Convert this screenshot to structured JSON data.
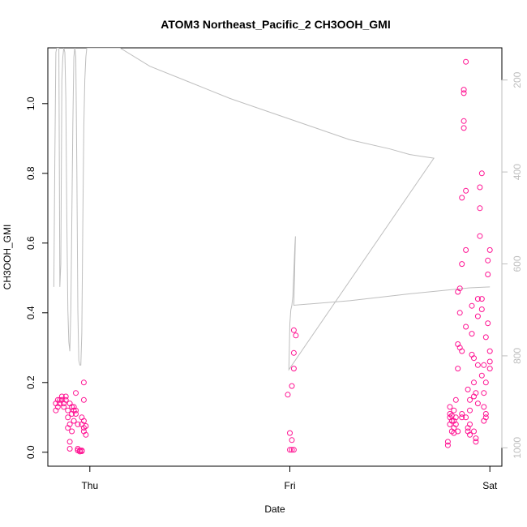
{
  "chart_data": {
    "type": "scatter",
    "title": "ATOM3 Northeast_Pacific_2 CH3OOH_GMI",
    "xlabel": "Date",
    "ylabel": "CH3OOH_GMI",
    "x_ticks": [
      {
        "label": "Thu",
        "pos": 0.0
      },
      {
        "label": "Fri",
        "pos": 1.0
      },
      {
        "label": "Sat",
        "pos": 2.0
      }
    ],
    "y_ticks": [
      "0.0",
      "0.2",
      "0.4",
      "0.6",
      "0.8",
      "1.0"
    ],
    "ylim": [
      -0.04,
      1.16
    ],
    "xlim": [
      -0.21,
      2.06
    ],
    "right_axis": {
      "ticks": [
        "200",
        "400",
        "600",
        "800",
        "1000"
      ],
      "tick_values": [
        200,
        400,
        600,
        800,
        1000
      ],
      "ylim_reversed": [
        1040,
        130
      ],
      "color": "#bebebe"
    },
    "colors": {
      "points": "#ff1493",
      "line": "#bebebe"
    },
    "series": [
      {
        "values": [
          [
            -0.17,
            0.12
          ],
          [
            -0.17,
            0.14
          ],
          [
            -0.16,
            0.15
          ],
          [
            -0.16,
            0.13
          ],
          [
            -0.15,
            0.15
          ],
          [
            -0.15,
            0.14
          ],
          [
            -0.14,
            0.16
          ],
          [
            -0.14,
            0.15
          ],
          [
            -0.13,
            0.13
          ],
          [
            -0.13,
            0.14
          ],
          [
            -0.12,
            0.16
          ],
          [
            -0.12,
            0.15
          ],
          [
            -0.11,
            0.12
          ],
          [
            -0.11,
            0.1
          ],
          [
            -0.11,
            0.07
          ],
          [
            -0.1,
            0.08
          ],
          [
            -0.1,
            0.03
          ],
          [
            -0.1,
            0.01
          ],
          [
            -0.1,
            0.14
          ],
          [
            -0.09,
            0.11
          ],
          [
            -0.09,
            0.06
          ],
          [
            -0.09,
            0.13
          ],
          [
            -0.08,
            0.12
          ],
          [
            -0.08,
            0.09
          ],
          [
            -0.08,
            0.13
          ],
          [
            -0.07,
            0.17
          ],
          [
            -0.07,
            0.12
          ],
          [
            -0.07,
            0.11
          ],
          [
            -0.06,
            0.08
          ],
          [
            -0.06,
            0.01
          ],
          [
            -0.06,
            0.005
          ],
          [
            -0.05,
            0.002
          ],
          [
            -0.05,
            0.005
          ],
          [
            -0.04,
            0.003
          ],
          [
            -0.04,
            0.005
          ],
          [
            -0.04,
            0.1
          ],
          [
            -0.04,
            0.08
          ],
          [
            -0.03,
            0.07
          ],
          [
            -0.03,
            0.06
          ],
          [
            -0.03,
            0.09
          ],
          [
            -0.03,
            0.15
          ],
          [
            -0.03,
            0.2
          ],
          [
            -0.02,
            0.05
          ],
          [
            -0.02,
            0.075
          ],
          [
            0.99,
            0.165
          ],
          [
            1.0,
            0.055
          ],
          [
            1.0,
            0.007
          ],
          [
            1.01,
            0.007
          ],
          [
            1.01,
            0.035
          ],
          [
            1.01,
            0.19
          ],
          [
            1.02,
            0.285
          ],
          [
            1.02,
            0.24
          ],
          [
            1.02,
            0.35
          ],
          [
            1.03,
            0.335
          ],
          [
            1.02,
            0.007
          ],
          [
            1.79,
            0.02
          ],
          [
            1.79,
            0.03
          ],
          [
            1.8,
            0.08
          ],
          [
            1.8,
            0.1
          ],
          [
            1.8,
            0.11
          ],
          [
            1.8,
            0.13
          ],
          [
            1.81,
            0.09
          ],
          [
            1.81,
            0.06
          ],
          [
            1.81,
            0.105
          ],
          [
            1.82,
            0.12
          ],
          [
            1.82,
            0.07
          ],
          [
            1.82,
            0.055
          ],
          [
            1.83,
            0.1
          ],
          [
            1.83,
            0.08
          ],
          [
            1.83,
            0.15
          ],
          [
            1.84,
            0.24
          ],
          [
            1.84,
            0.31
          ],
          [
            1.84,
            0.46
          ],
          [
            1.85,
            0.47
          ],
          [
            1.85,
            0.4
          ],
          [
            1.85,
            0.3
          ],
          [
            1.86,
            0.11
          ],
          [
            1.86,
            0.1
          ],
          [
            1.86,
            0.54
          ],
          [
            1.86,
            0.73
          ],
          [
            1.87,
            0.93
          ],
          [
            1.87,
            0.95
          ],
          [
            1.87,
            1.03
          ],
          [
            1.87,
            1.04
          ],
          [
            1.88,
            1.12
          ],
          [
            1.88,
            0.75
          ],
          [
            1.88,
            0.58
          ],
          [
            1.88,
            0.36
          ],
          [
            1.89,
            0.18
          ],
          [
            1.89,
            0.07
          ],
          [
            1.89,
            0.06
          ],
          [
            1.9,
            0.05
          ],
          [
            1.9,
            0.08
          ],
          [
            1.9,
            0.15
          ],
          [
            1.91,
            0.28
          ],
          [
            1.91,
            0.42
          ],
          [
            1.91,
            0.34
          ],
          [
            1.92,
            0.2
          ],
          [
            1.92,
            0.16
          ],
          [
            1.92,
            0.06
          ],
          [
            1.93,
            0.04
          ],
          [
            1.93,
            0.03
          ],
          [
            1.93,
            0.17
          ],
          [
            1.94,
            0.25
          ],
          [
            1.94,
            0.39
          ],
          [
            1.94,
            0.44
          ],
          [
            1.95,
            0.62
          ],
          [
            1.95,
            0.7
          ],
          [
            1.95,
            0.76
          ],
          [
            1.96,
            0.8
          ],
          [
            1.96,
            0.44
          ],
          [
            1.96,
            0.41
          ],
          [
            1.97,
            0.25
          ],
          [
            1.97,
            0.17
          ],
          [
            1.97,
            0.13
          ],
          [
            1.97,
            0.09
          ],
          [
            1.98,
            0.1
          ],
          [
            1.98,
            0.2
          ],
          [
            1.98,
            0.33
          ],
          [
            1.99,
            0.37
          ],
          [
            1.99,
            0.51
          ],
          [
            1.99,
            0.55
          ],
          [
            2.0,
            0.58
          ],
          [
            2.0,
            0.29
          ],
          [
            2.0,
            0.26
          ],
          [
            2.0,
            0.24
          ],
          [
            1.98,
            0.11
          ],
          [
            1.96,
            0.22
          ],
          [
            1.94,
            0.14
          ],
          [
            1.92,
            0.27
          ],
          [
            1.9,
            0.12
          ],
          [
            1.88,
            0.1
          ],
          [
            1.86,
            0.29
          ],
          [
            1.84,
            0.06
          ],
          [
            1.82,
            0.09
          ]
        ]
      },
      {
        "axis": "right",
        "values": [
          [
            -0.18,
            650
          ],
          [
            -0.175,
            380
          ],
          [
            -0.17,
            140
          ],
          [
            -0.165,
            130
          ],
          [
            -0.16,
            130
          ],
          [
            -0.155,
            130
          ],
          [
            -0.15,
            650
          ],
          [
            -0.145,
            600
          ],
          [
            -0.14,
            200
          ],
          [
            -0.135,
            150
          ],
          [
            -0.13,
            130
          ],
          [
            -0.125,
            140
          ],
          [
            -0.12,
            240
          ],
          [
            -0.115,
            500
          ],
          [
            -0.11,
            700
          ],
          [
            -0.105,
            770
          ],
          [
            -0.1,
            790
          ],
          [
            -0.095,
            700
          ],
          [
            -0.09,
            500
          ],
          [
            -0.085,
            300
          ],
          [
            -0.08,
            150
          ],
          [
            -0.075,
            130
          ],
          [
            -0.07,
            150
          ],
          [
            -0.065,
            400
          ],
          [
            -0.06,
            700
          ],
          [
            -0.055,
            810
          ],
          [
            -0.05,
            820
          ],
          [
            -0.045,
            820
          ],
          [
            -0.04,
            750
          ],
          [
            -0.035,
            500
          ],
          [
            -0.03,
            300
          ],
          [
            -0.025,
            200
          ],
          [
            -0.02,
            150
          ],
          [
            -0.015,
            130
          ],
          [
            0.15,
            130
          ],
          [
            0.3,
            170
          ],
          [
            0.5,
            205
          ],
          [
            0.7,
            240
          ],
          [
            0.9,
            270
          ],
          [
            1.1,
            300
          ],
          [
            1.3,
            330
          ],
          [
            1.5,
            350
          ],
          [
            1.6,
            362
          ],
          [
            1.72,
            370
          ],
          [
            0.995,
            830
          ],
          [
            1.0,
            730
          ],
          [
            1.005,
            700
          ],
          [
            1.01,
            690
          ],
          [
            1.015,
            670
          ],
          [
            1.02,
            620
          ],
          [
            1.025,
            560
          ],
          [
            1.028,
            540
          ],
          [
            1.02,
            690
          ],
          [
            1.3,
            680
          ],
          [
            1.6,
            665
          ],
          [
            1.9,
            652
          ],
          [
            2.0,
            650
          ]
        ]
      }
    ]
  }
}
